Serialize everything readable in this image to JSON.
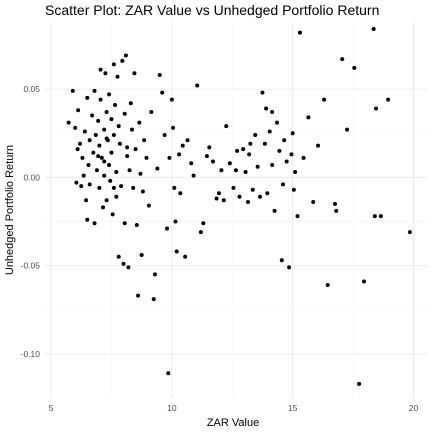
{
  "chart_data": {
    "type": "scatter",
    "title": "Scatter Plot: ZAR Value vs Unhedged Portfolio Return",
    "xlabel": "ZAR Value",
    "ylabel": "Unhedged Portfolio Return",
    "xlim": [
      4.75,
      20.6
    ],
    "ylim": [
      -0.125,
      0.088
    ],
    "xticks": [
      5,
      10,
      15,
      20
    ],
    "xtick_labels": [
      "5",
      "10",
      "15",
      "20"
    ],
    "yticks": [
      -0.1,
      -0.05,
      0.0,
      0.05
    ],
    "ytick_labels": [
      "-0.10",
      "-0.05",
      "0.00",
      "0.05"
    ],
    "grid": true,
    "legend": "none",
    "points_color": "#000000",
    "points": [
      [
        5.73,
        0.031
      ],
      [
        5.9,
        0.049
      ],
      [
        6.0,
        0.028
      ],
      [
        6.05,
        -0.003
      ],
      [
        6.1,
        0.016
      ],
      [
        6.12,
        0.038
      ],
      [
        6.2,
        0.019
      ],
      [
        6.25,
        -0.005
      ],
      [
        6.3,
        0.011
      ],
      [
        6.35,
        0.001
      ],
      [
        6.4,
        0.026
      ],
      [
        6.45,
        -0.013
      ],
      [
        6.5,
        0.045
      ],
      [
        6.5,
        -0.024
      ],
      [
        6.55,
        0.007
      ],
      [
        6.6,
        0.021
      ],
      [
        6.6,
        -0.004
      ],
      [
        6.7,
        0.035
      ],
      [
        6.75,
        0.014
      ],
      [
        6.8,
        0.049
      ],
      [
        6.8,
        -0.026
      ],
      [
        6.85,
        0.024
      ],
      [
        6.9,
        0.004
      ],
      [
        6.95,
        0.032
      ],
      [
        7.0,
        -0.006
      ],
      [
        7.0,
        0.018
      ],
      [
        7.05,
        0.044
      ],
      [
        7.05,
        0.061
      ],
      [
        7.1,
        0.011
      ],
      [
        7.15,
        -0.017
      ],
      [
        7.2,
        0.027
      ],
      [
        7.2,
        0.001
      ],
      [
        7.25,
        0.059
      ],
      [
        7.3,
        0.037
      ],
      [
        7.3,
        -0.013
      ],
      [
        7.35,
        0.021
      ],
      [
        7.4,
        0.047
      ],
      [
        7.4,
        0.007
      ],
      [
        7.45,
        -0.002
      ],
      [
        7.5,
        0.033
      ],
      [
        7.5,
        0.014
      ],
      [
        7.55,
        -0.021
      ],
      [
        7.6,
        0.064
      ],
      [
        7.6,
        0.024
      ],
      [
        7.65,
        0.041
      ],
      [
        7.7,
        -0.011
      ],
      [
        7.7,
        0.003
      ],
      [
        7.75,
        0.057
      ],
      [
        7.8,
        0.029
      ],
      [
        7.8,
        -0.045
      ],
      [
        7.85,
        0.019
      ],
      [
        7.9,
        -0.005
      ],
      [
        7.95,
        0.066
      ],
      [
        8.0,
        -0.049
      ],
      [
        8.05,
        0.036
      ],
      [
        8.05,
        -0.026
      ],
      [
        8.1,
        0.069
      ],
      [
        8.15,
        0.012
      ],
      [
        8.2,
        -0.051
      ],
      [
        8.25,
        0.004
      ],
      [
        8.3,
        0.042
      ],
      [
        8.35,
        0.027
      ],
      [
        8.4,
        -0.006
      ],
      [
        8.45,
        0.059
      ],
      [
        8.5,
        0.016
      ],
      [
        8.55,
        -0.027
      ],
      [
        8.6,
        -0.067
      ],
      [
        8.65,
        0.031
      ],
      [
        8.7,
        0.002
      ],
      [
        8.75,
        -0.044
      ],
      [
        8.85,
        0.021
      ],
      [
        8.95,
        0.011
      ],
      [
        9.05,
        -0.016
      ],
      [
        9.15,
        0.037
      ],
      [
        9.25,
        -0.069
      ],
      [
        9.3,
        -0.055
      ],
      [
        9.4,
        0.005
      ],
      [
        9.5,
        0.058
      ],
      [
        9.6,
        0.048
      ],
      [
        9.7,
        0.024
      ],
      [
        9.8,
        -0.029
      ],
      [
        9.85,
        -0.111
      ],
      [
        9.9,
        0.011
      ],
      [
        10.0,
        0.044
      ],
      [
        10.05,
        0.028
      ],
      [
        10.1,
        -0.006
      ],
      [
        10.15,
        -0.025
      ],
      [
        10.2,
        -0.042
      ],
      [
        10.3,
        0.013
      ],
      [
        10.35,
        -0.009
      ],
      [
        10.45,
        0.018
      ],
      [
        10.55,
        -0.045
      ],
      [
        10.65,
        0.021
      ],
      [
        10.8,
        0.008
      ],
      [
        10.9,
        0.001
      ],
      [
        11.05,
        0.052
      ],
      [
        11.2,
        -0.031
      ],
      [
        11.3,
        -0.026
      ],
      [
        11.45,
        0.012
      ],
      [
        11.55,
        0.017
      ],
      [
        11.7,
        0.009
      ],
      [
        11.85,
        -0.012
      ],
      [
        11.95,
        -0.009
      ],
      [
        12.05,
        0.004
      ],
      [
        12.15,
        -0.013
      ],
      [
        12.25,
        0.029
      ],
      [
        12.4,
        0.008
      ],
      [
        12.55,
        -0.006
      ],
      [
        12.65,
        0.004
      ],
      [
        12.8,
        -0.011
      ],
      [
        12.95,
        0.016
      ],
      [
        13.05,
        0.003
      ],
      [
        13.15,
        -0.014
      ],
      [
        13.25,
        0.019
      ],
      [
        13.35,
        -0.007
      ],
      [
        13.45,
        0.024
      ],
      [
        13.55,
        0.006
      ],
      [
        13.65,
        -0.011
      ],
      [
        13.75,
        0.048
      ],
      [
        13.85,
        0.019
      ],
      [
        13.95,
        -0.009
      ],
      [
        14.05,
        0.026
      ],
      [
        14.15,
        0.007
      ],
      [
        14.25,
        -0.019
      ],
      [
        14.35,
        0.031
      ],
      [
        14.45,
        0.015
      ],
      [
        14.55,
        -0.047
      ],
      [
        14.65,
        0.021
      ],
      [
        14.75,
        0.009
      ],
      [
        14.85,
        -0.051
      ],
      [
        14.95,
        0.013
      ],
      [
        15.05,
        -0.007
      ],
      [
        15.1,
        0.003
      ],
      [
        15.2,
        -0.022
      ],
      [
        15.3,
        0.082
      ],
      [
        15.45,
        0.011
      ],
      [
        15.65,
        0.034
      ],
      [
        15.85,
        -0.014
      ],
      [
        16.05,
        0.018
      ],
      [
        16.3,
        0.044
      ],
      [
        16.45,
        -0.061
      ],
      [
        16.75,
        -0.015
      ],
      [
        17.05,
        0.067
      ],
      [
        17.25,
        0.027
      ],
      [
        17.55,
        0.062
      ],
      [
        17.75,
        -0.117
      ],
      [
        17.95,
        -0.059
      ],
      [
        18.35,
        0.084
      ],
      [
        18.45,
        0.039
      ],
      [
        18.65,
        -0.022
      ],
      [
        18.95,
        0.044
      ],
      [
        19.85,
        -0.031
      ],
      [
        7.2,
        0.009
      ],
      [
        7.3,
        0.022
      ],
      [
        6.95,
        0.012
      ],
      [
        7.6,
        -0.006
      ],
      [
        8.15,
        0.017
      ],
      [
        8.8,
        -0.008
      ],
      [
        13.2,
        0.013
      ],
      [
        14.15,
        0.037
      ],
      [
        14.6,
        -0.004
      ],
      [
        15.0,
        0.025
      ],
      [
        16.8,
        -0.019
      ],
      [
        18.4,
        -0.022
      ],
      [
        13.9,
        0.039
      ],
      [
        12.7,
        0.015
      ]
    ]
  }
}
